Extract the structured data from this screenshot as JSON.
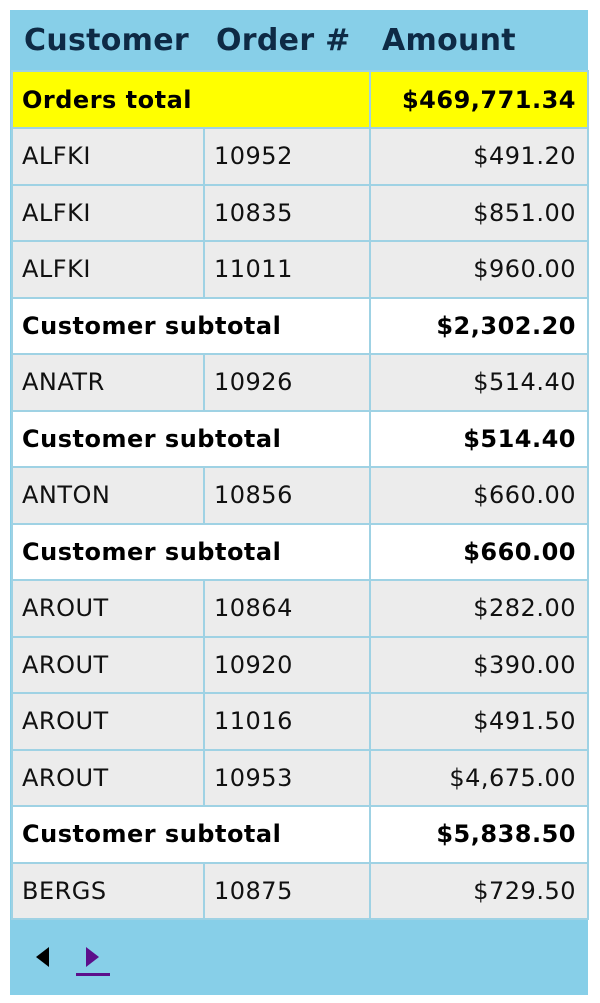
{
  "columns": [
    "Customer",
    "Order #",
    "Amount"
  ],
  "grand_total": {
    "label": "Orders total",
    "amount": "$469,771.34"
  },
  "rows": [
    {
      "customer": "ALFKI",
      "order": "10952",
      "amount": "$491.20"
    },
    {
      "customer": "ALFKI",
      "order": "10835",
      "amount": "$851.00"
    },
    {
      "customer": "ALFKI",
      "order": "11011",
      "amount": "$960.00"
    },
    {
      "subtotal_label": "Customer subtotal",
      "amount": "$2,302.20"
    },
    {
      "customer": "ANATR",
      "order": "10926",
      "amount": "$514.40"
    },
    {
      "subtotal_label": "Customer subtotal",
      "amount": "$514.40"
    },
    {
      "customer": "ANTON",
      "order": "10856",
      "amount": "$660.00"
    },
    {
      "subtotal_label": "Customer subtotal",
      "amount": "$660.00"
    },
    {
      "customer": "AROUT",
      "order": "10864",
      "amount": "$282.00"
    },
    {
      "customer": "AROUT",
      "order": "10920",
      "amount": "$390.00"
    },
    {
      "customer": "AROUT",
      "order": "11016",
      "amount": "$491.50"
    },
    {
      "customer": "AROUT",
      "order": "10953",
      "amount": "$4,675.00"
    },
    {
      "subtotal_label": "Customer subtotal",
      "amount": "$5,838.50"
    },
    {
      "customer": "BERGS",
      "order": "10875",
      "amount": "$729.50"
    }
  ],
  "pager": {
    "prev_icon": "triangle-left-icon",
    "next_icon": "triangle-right-icon",
    "next_color": "#5c0f8b"
  },
  "colors": {
    "header_bg": "#87cfe8",
    "grand_total_bg": "#ffff00",
    "row_bg": "#ececec",
    "subtotal_bg": "#ffffff",
    "border": "#9fd2e4"
  }
}
